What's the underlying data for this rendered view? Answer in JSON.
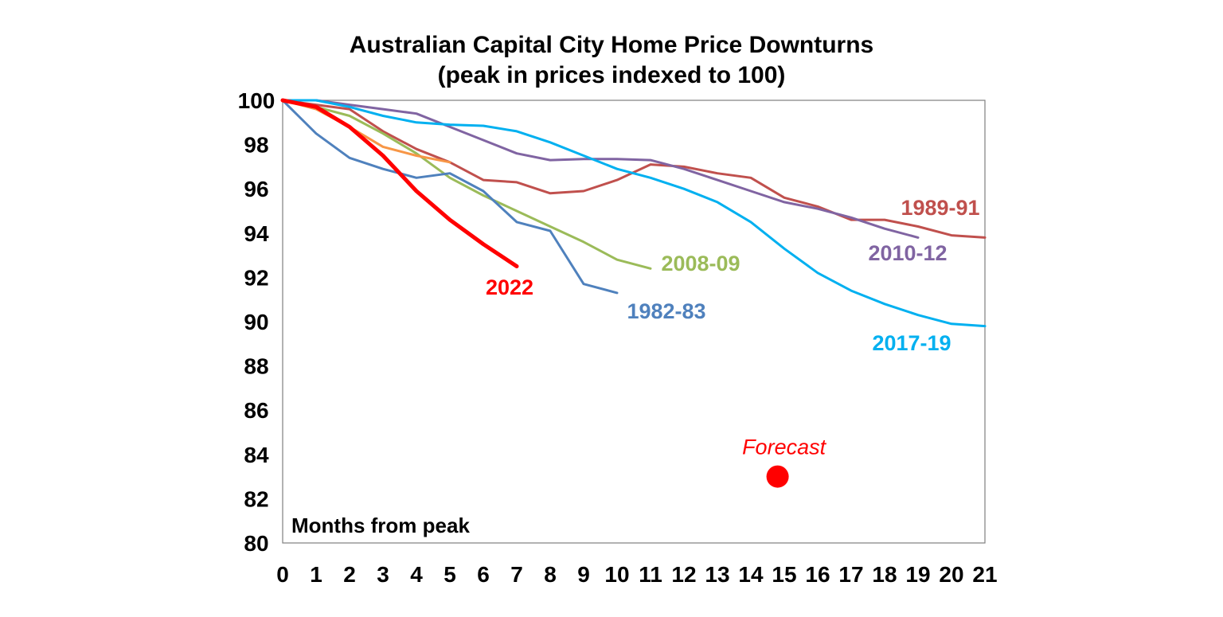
{
  "chart_data": {
    "type": "line",
    "title": [
      "Australian Capital City Home Price Downturns",
      "(peak in prices indexed to 100)"
    ],
    "xlabel": "Months from peak",
    "ylabel": "",
    "xlim": [
      0,
      21
    ],
    "ylim": [
      80,
      100
    ],
    "x_ticks": [
      "0",
      "1",
      "2",
      "3",
      "4",
      "5",
      "6",
      "7",
      "8",
      "9",
      "10",
      "11",
      "12",
      "13",
      "14",
      "15",
      "16",
      "17",
      "18",
      "19",
      "20",
      "21"
    ],
    "y_ticks": [
      "80",
      "82",
      "84",
      "86",
      "88",
      "90",
      "92",
      "94",
      "96",
      "98",
      "100"
    ],
    "grid": false,
    "legend": "none",
    "series": [
      {
        "name": "1989-91",
        "color": "#c0504d",
        "x": [
          0,
          1,
          2,
          3,
          4,
          5,
          6,
          7,
          8,
          9,
          10,
          11,
          12,
          13,
          14,
          15,
          16,
          17,
          18,
          19,
          20,
          21
        ],
        "values": [
          100,
          99.8,
          99.6,
          98.6,
          97.8,
          97.2,
          96.4,
          96.3,
          95.8,
          95.9,
          96.4,
          97.1,
          97.0,
          96.7,
          96.5,
          95.6,
          95.2,
          94.6,
          94.6,
          94.3,
          93.9,
          93.8
        ]
      },
      {
        "name": "2010-12",
        "color": "#8064a2",
        "x": [
          0,
          1,
          2,
          3,
          4,
          5,
          6,
          7,
          8,
          9,
          10,
          11,
          12,
          13,
          14,
          15,
          16,
          17,
          18,
          19
        ],
        "values": [
          100,
          100,
          99.8,
          99.6,
          99.4,
          98.8,
          98.2,
          97.6,
          97.3,
          97.35,
          97.35,
          97.3,
          96.9,
          96.4,
          95.9,
          95.4,
          95.1,
          94.7,
          94.2,
          93.8
        ]
      },
      {
        "name": "2017-19",
        "color": "#00b0f0",
        "x": [
          0,
          1,
          2,
          3,
          4,
          5,
          6,
          7,
          8,
          9,
          10,
          11,
          12,
          13,
          14,
          15,
          16,
          17,
          18,
          19,
          20,
          21
        ],
        "values": [
          100,
          100,
          99.7,
          99.3,
          99.0,
          98.9,
          98.85,
          98.6,
          98.1,
          97.5,
          96.9,
          96.5,
          96.0,
          95.4,
          94.5,
          93.3,
          92.2,
          91.4,
          90.8,
          90.3,
          89.9,
          89.8
        ]
      },
      {
        "name": "2008-09",
        "color": "#9bbb59",
        "x": [
          0,
          1,
          2,
          3,
          4,
          5,
          6,
          7,
          8,
          9,
          10,
          11
        ],
        "values": [
          100,
          99.7,
          99.3,
          98.5,
          97.6,
          96.5,
          95.7,
          95.0,
          94.3,
          93.6,
          92.8,
          92.4
        ]
      },
      {
        "name": "1982-83",
        "color": "#4f81bd",
        "x": [
          0,
          1,
          2,
          3,
          4,
          5,
          6,
          7,
          8,
          9,
          10
        ],
        "values": [
          100,
          98.5,
          97.4,
          96.9,
          96.5,
          96.7,
          95.9,
          94.5,
          94.1,
          91.7,
          91.3
        ]
      },
      {
        "name": "",
        "color": "#f79646",
        "x": [
          0,
          1,
          2,
          3,
          4,
          5
        ],
        "values": [
          100,
          99.6,
          98.8,
          97.9,
          97.5,
          97.2
        ]
      },
      {
        "name": "2022",
        "color": "#ff0000",
        "x": [
          0,
          1,
          2,
          3,
          4,
          5,
          6,
          7
        ],
        "values": [
          100,
          99.7,
          98.8,
          97.5,
          95.9,
          94.6,
          93.5,
          92.5
        ]
      }
    ],
    "annotations": [
      {
        "text": "Forecast",
        "x": 14.8,
        "y": 83.0,
        "color": "#ff0000",
        "marker": "circle"
      }
    ]
  }
}
